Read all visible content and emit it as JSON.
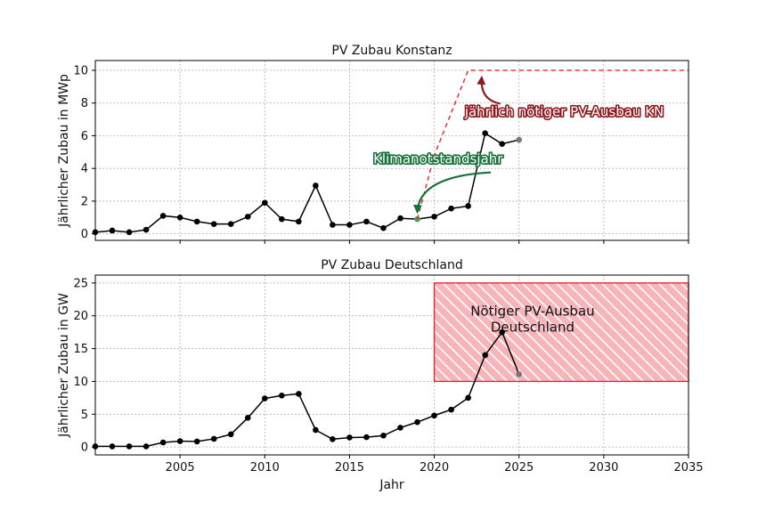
{
  "chart_data": [
    {
      "id": "konstanz",
      "type": "line",
      "title": "PV Zubau Konstanz",
      "ylabel": "Jährlicher Zubau in MWp",
      "xlabel": "",
      "xlim": [
        2000,
        2035
      ],
      "ylim": [
        -0.4,
        10.6
      ],
      "xticks": [
        2005,
        2010,
        2015,
        2020,
        2025,
        2030,
        2035
      ],
      "xtick_labels_visible": false,
      "yticks": [
        0,
        2,
        4,
        6,
        8,
        10
      ],
      "grid": true,
      "series": [
        {
          "color": "#000000",
          "x": [
            2000,
            2001,
            2002,
            2003,
            2004,
            2005,
            2006,
            2007,
            2008,
            2009,
            2010,
            2011,
            2012,
            2013,
            2014,
            2015,
            2016,
            2017,
            2018,
            2019,
            2020,
            2021,
            2022,
            2023,
            2024,
            2025
          ],
          "y": [
            0.1,
            0.2,
            0.1,
            0.25,
            1.1,
            1.0,
            0.75,
            0.6,
            0.6,
            1.05,
            1.9,
            0.9,
            0.75,
            2.95,
            0.55,
            0.55,
            0.75,
            0.35,
            0.95,
            0.9,
            1.05,
            1.55,
            1.7,
            6.15,
            5.5,
            5.75
          ],
          "highlighted_points": [
            {
              "x": 2019,
              "y": 0.9,
              "color": "#4a9e54"
            },
            {
              "x": 2025,
              "y": 5.75,
              "color": "#777777"
            }
          ]
        },
        {
          "color": "#e8202a",
          "style": "dashed",
          "x": [
            2019,
            2020,
            2022,
            2035
          ],
          "y": [
            0.9,
            4.8,
            10.0,
            10.0
          ]
        }
      ],
      "annotations": [
        {
          "text": "Klimanotstandsjahr",
          "x": 2016.4,
          "y": 4.3,
          "arrow_to": [
            2019,
            0.9
          ],
          "fill": "#16713a",
          "outline": "#16713a"
        },
        {
          "text": "jährlich nötiger PV-Ausbau KN",
          "x": 2021.8,
          "y": 7.2,
          "arrow_to": [
            2022.8,
            10.0
          ],
          "fill": "#8e1a1f",
          "outline": "#8e1a1f"
        }
      ]
    },
    {
      "id": "deutschland",
      "type": "line",
      "title": "PV Zubau Deutschland",
      "ylabel": "Jährlicher Zubau in GW",
      "xlabel": "Jahr",
      "xlim": [
        2000,
        2035
      ],
      "ylim": [
        -1.2,
        26.2
      ],
      "xticks": [
        2005,
        2010,
        2015,
        2020,
        2025,
        2030,
        2035
      ],
      "xtick_labels_visible": true,
      "yticks": [
        0,
        5,
        10,
        15,
        20,
        25
      ],
      "grid": true,
      "region": {
        "x0": 2020,
        "x1": 2035,
        "y0": 10,
        "y1": 25,
        "fill": "#f5a3a8",
        "edge": "#e8202a"
      },
      "series": [
        {
          "color": "#000000",
          "x": [
            2000,
            2001,
            2002,
            2003,
            2004,
            2005,
            2006,
            2007,
            2008,
            2009,
            2010,
            2011,
            2012,
            2013,
            2014,
            2015,
            2016,
            2017,
            2018,
            2019,
            2020,
            2021,
            2022,
            2023,
            2024,
            2025
          ],
          "y": [
            0.1,
            0.1,
            0.1,
            0.1,
            0.7,
            0.9,
            0.85,
            1.25,
            1.95,
            4.45,
            7.4,
            7.85,
            8.1,
            2.6,
            1.2,
            1.45,
            1.5,
            1.75,
            2.95,
            3.8,
            4.8,
            5.7,
            7.5,
            14.0,
            17.5,
            11.1
          ],
          "highlighted_points": [
            {
              "x": 2025,
              "y": 11.1,
              "color": "#777777"
            }
          ]
        }
      ],
      "annotations": [
        {
          "lines": [
            "Nötiger PV-Ausbau",
            "Deutschland"
          ],
          "x": 2025.8,
          "y": 20.0
        }
      ]
    }
  ]
}
